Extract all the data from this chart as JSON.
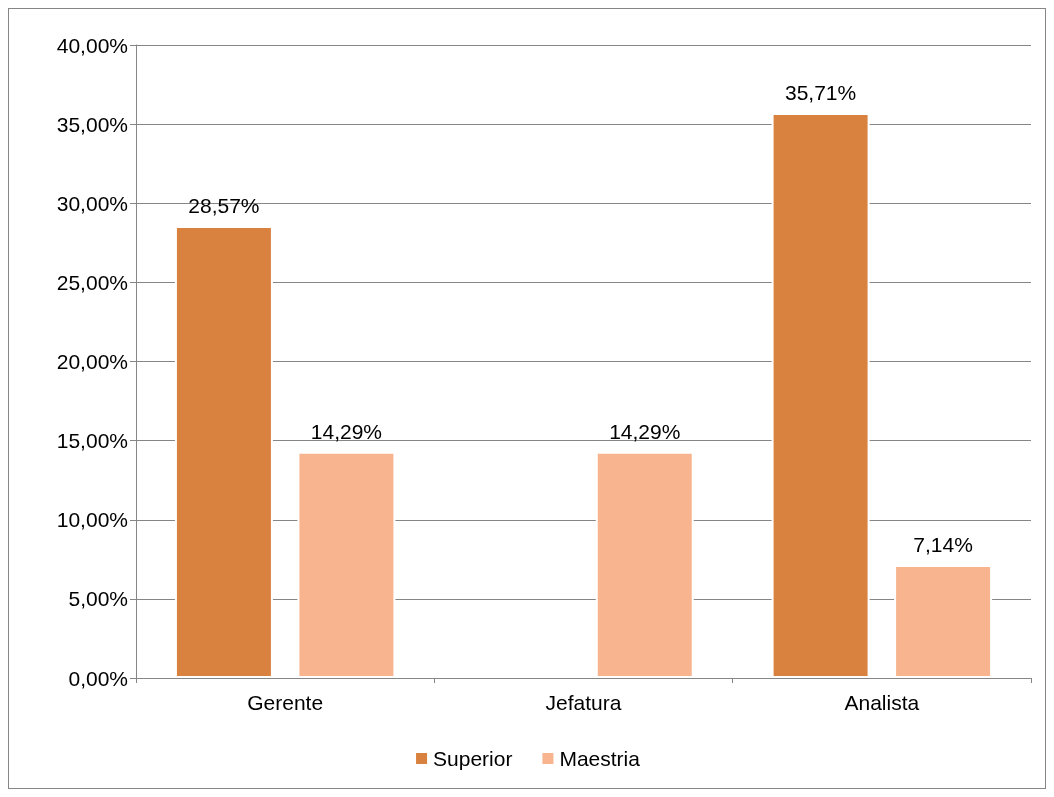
{
  "chart_data": {
    "type": "bar",
    "categories": [
      "Gerente",
      "Jefatura",
      "Analista"
    ],
    "series": [
      {
        "name": "Superior",
        "color": "#d9823f",
        "values": [
          28.57,
          null,
          35.71
        ],
        "value_labels": [
          "28,57%",
          null,
          "35,71%"
        ]
      },
      {
        "name": "Maestria",
        "color": "#f7b48e",
        "values": [
          14.29,
          14.29,
          7.14
        ],
        "value_labels": [
          "14,29%",
          "14,29%",
          "7,14%"
        ]
      }
    ],
    "ylim": [
      0,
      40
    ],
    "yticks": [
      {
        "value": 0,
        "label": "0,00%"
      },
      {
        "value": 5,
        "label": "5,00%"
      },
      {
        "value": 10,
        "label": "10,00%"
      },
      {
        "value": 15,
        "label": "15,00%"
      },
      {
        "value": 20,
        "label": "20,00%"
      },
      {
        "value": 25,
        "label": "25,00%"
      },
      {
        "value": 30,
        "label": "30,00%"
      },
      {
        "value": 35,
        "label": "35,00%"
      },
      {
        "value": 40,
        "label": "40,00%"
      }
    ],
    "grid": "y",
    "legend": "bottom"
  }
}
